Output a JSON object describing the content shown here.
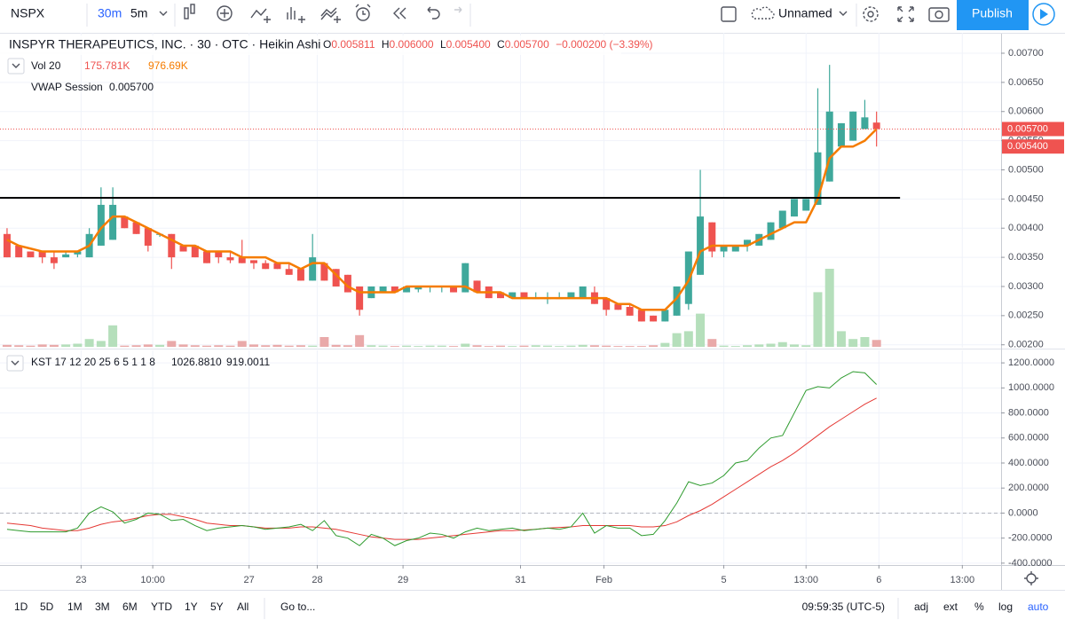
{
  "toolbar": {
    "symbol": "NSPX",
    "intervals": [
      "30m",
      "5m"
    ],
    "layout_name": "Unnamed",
    "publish": "Publish"
  },
  "chart_data": [
    {
      "type": "candlestick",
      "title": "INSPYR THERAPEUTICS, INC. · 30 · OTC · Heikin Ashi",
      "ohlc_legend": [
        {
          "label": "O",
          "value": "0.005811"
        },
        {
          "label": "H",
          "value": "0.006000"
        },
        {
          "label": "L",
          "value": "0.005400"
        },
        {
          "label": "C",
          "value": "0.005700"
        }
      ],
      "change": "−0.000200 (−3.39%)",
      "xlim": [
        -0.6,
        84.6
      ],
      "ylim": [
        0.00195,
        0.00735
      ],
      "yticks": [
        {
          "value": 0.002,
          "label": "0.00200"
        },
        {
          "value": 0.0025,
          "label": "0.00250"
        },
        {
          "value": 0.003,
          "label": "0.00300"
        },
        {
          "value": 0.0035,
          "label": "0.00350"
        },
        {
          "value": 0.004,
          "label": "0.00400"
        },
        {
          "value": 0.0045,
          "label": "0.00450"
        },
        {
          "value": 0.005,
          "label": "0.00500"
        },
        {
          "value": 0.0055,
          "label": "0.00550"
        },
        {
          "value": 0.006,
          "label": "0.00600"
        },
        {
          "value": 0.0065,
          "label": "0.00650"
        },
        {
          "value": 0.007,
          "label": "0.00700"
        }
      ],
      "grid": true,
      "up_color": "#3fa89b",
      "down_color": "#ef5350",
      "open": [
        0.0039,
        0.0037,
        0.0036,
        0.0036,
        0.0035,
        0.0035,
        0.00355,
        0.0035,
        0.0037,
        0.0038,
        0.0042,
        0.0041,
        0.004,
        0.0039,
        0.0039,
        0.0037,
        0.0037,
        0.0036,
        0.0036,
        0.0035,
        0.0035,
        0.00345,
        0.0034,
        0.0034,
        0.0033,
        0.0033,
        0.0031,
        0.0034,
        0.0033,
        0.0032,
        0.003,
        0.0028,
        0.0029,
        0.003,
        0.0029,
        0.00295,
        0.003,
        0.003,
        0.003,
        0.0029,
        0.0031,
        0.003,
        0.0029,
        0.0028,
        0.0029,
        0.0028,
        0.0028,
        0.0028,
        0.0028,
        0.0028,
        0.0029,
        0.0028,
        0.0027,
        0.00265,
        0.0026,
        0.0025,
        0.0024,
        0.0025,
        0.0027,
        0.0032,
        0.0041,
        0.0036,
        0.0036,
        0.0037,
        0.0037,
        0.0038,
        0.004,
        0.0042,
        0.0043,
        0.0044,
        0.0048,
        0.0054,
        0.0055,
        0.0057,
        0.005811
      ],
      "high": [
        0.004,
        0.0037,
        0.0036,
        0.0036,
        0.0036,
        0.0036,
        0.0036,
        0.004,
        0.0047,
        0.0047,
        0.0042,
        0.0041,
        0.004,
        0.0039,
        0.0039,
        0.0037,
        0.0037,
        0.0036,
        0.0036,
        0.0036,
        0.0038,
        0.00345,
        0.00345,
        0.0034,
        0.0034,
        0.0033,
        0.0039,
        0.0034,
        0.0033,
        0.0032,
        0.003,
        0.003,
        0.003,
        0.003,
        0.003,
        0.003,
        0.003,
        0.003,
        0.003,
        0.0034,
        0.0031,
        0.003,
        0.0029,
        0.0029,
        0.0029,
        0.0029,
        0.0029,
        0.0029,
        0.0029,
        0.003,
        0.003,
        0.0028,
        0.0027,
        0.0027,
        0.0026,
        0.0025,
        0.0026,
        0.003,
        0.0036,
        0.005,
        0.0041,
        0.0037,
        0.0037,
        0.0038,
        0.0039,
        0.0041,
        0.0043,
        0.0045,
        0.0045,
        0.0064,
        0.0068,
        0.0058,
        0.006,
        0.0062,
        0.006
      ],
      "low": [
        0.0035,
        0.0035,
        0.0035,
        0.0034,
        0.0033,
        0.0035,
        0.0035,
        0.0035,
        0.0037,
        0.0038,
        0.004,
        0.0039,
        0.0036,
        0.00385,
        0.0033,
        0.0036,
        0.0035,
        0.0034,
        0.0034,
        0.0034,
        0.0034,
        0.0033,
        0.0033,
        0.0033,
        0.0032,
        0.0031,
        0.0031,
        0.0031,
        0.003,
        0.0029,
        0.0025,
        0.0028,
        0.0029,
        0.0029,
        0.0029,
        0.0029,
        0.0029,
        0.0029,
        0.0029,
        0.0029,
        0.0029,
        0.0028,
        0.0028,
        0.0028,
        0.0028,
        0.0028,
        0.0027,
        0.0028,
        0.0028,
        0.0028,
        0.0027,
        0.0025,
        0.0026,
        0.0025,
        0.0024,
        0.0024,
        0.0024,
        0.0025,
        0.0026,
        0.0032,
        0.0035,
        0.0035,
        0.0036,
        0.0036,
        0.0037,
        0.0038,
        0.004,
        0.0042,
        0.0043,
        0.0044,
        0.0048,
        0.0054,
        0.0055,
        0.0057,
        0.0054
      ],
      "close": [
        0.0035,
        0.0035,
        0.0035,
        0.0035,
        0.0034,
        0.00355,
        0.0036,
        0.0039,
        0.0044,
        0.0044,
        0.004,
        0.0039,
        0.0037,
        0.0039,
        0.0035,
        0.0036,
        0.0035,
        0.0034,
        0.0035,
        0.00345,
        0.0034,
        0.0034,
        0.0033,
        0.0033,
        0.0032,
        0.0031,
        0.0035,
        0.0031,
        0.003,
        0.0029,
        0.0026,
        0.003,
        0.003,
        0.0029,
        0.003,
        0.003,
        0.003,
        0.003,
        0.0029,
        0.0034,
        0.0029,
        0.0028,
        0.0028,
        0.0029,
        0.0028,
        0.0028,
        0.0028,
        0.0028,
        0.0029,
        0.003,
        0.0027,
        0.0026,
        0.0026,
        0.0025,
        0.0024,
        0.0024,
        0.0026,
        0.003,
        0.0036,
        0.0042,
        0.0036,
        0.0037,
        0.0037,
        0.0038,
        0.0039,
        0.0041,
        0.0043,
        0.0045,
        0.0045,
        0.0053,
        0.006,
        0.0058,
        0.006,
        0.0059,
        0.0057
      ],
      "volume": {
        "title": "Vol 20",
        "labels": [
          "175.781K",
          "976.69K"
        ],
        "up_color": "#b5dfbb",
        "down_color": "#e9a9a9",
        "values": [
          50000,
          40000,
          30000,
          60000,
          50000,
          60000,
          80000,
          200000,
          150000,
          550000,
          30000,
          40000,
          60000,
          50000,
          150000,
          60000,
          40000,
          30000,
          40000,
          30000,
          150000,
          60000,
          40000,
          50000,
          30000,
          40000,
          30000,
          250000,
          50000,
          40000,
          300000,
          40000,
          30000,
          20000,
          30000,
          20000,
          30000,
          30000,
          20000,
          80000,
          40000,
          20000,
          30000,
          20000,
          30000,
          40000,
          30000,
          20000,
          30000,
          50000,
          40000,
          30000,
          20000,
          20000,
          20000,
          40000,
          100000,
          350000,
          400000,
          850000,
          200000,
          30000,
          20000,
          40000,
          60000,
          80000,
          120000,
          60000,
          40000,
          1400000,
          2000000,
          400000,
          200000,
          250000,
          175781
        ]
      },
      "overlays": [
        {
          "name": "VWAP Session",
          "color": "#f57c00",
          "value_label": "0.005700",
          "values": [
            0.0038,
            0.0037,
            0.00365,
            0.0036,
            0.0036,
            0.0036,
            0.0036,
            0.0037,
            0.004,
            0.0042,
            0.0042,
            0.0041,
            0.004,
            0.0039,
            0.0038,
            0.0037,
            0.0037,
            0.0036,
            0.0036,
            0.0036,
            0.0035,
            0.0035,
            0.0035,
            0.0034,
            0.0034,
            0.0033,
            0.0034,
            0.0034,
            0.0032,
            0.003,
            0.0029,
            0.0029,
            0.0029,
            0.0029,
            0.003,
            0.003,
            0.003,
            0.003,
            0.003,
            0.003,
            0.0029,
            0.0029,
            0.0029,
            0.0028,
            0.0028,
            0.0028,
            0.0028,
            0.0028,
            0.0028,
            0.0028,
            0.0028,
            0.0028,
            0.0027,
            0.0027,
            0.0026,
            0.0026,
            0.0026,
            0.0028,
            0.0031,
            0.0036,
            0.0037,
            0.0037,
            0.0037,
            0.0037,
            0.0038,
            0.0039,
            0.004,
            0.0041,
            0.0041,
            0.0045,
            0.0052,
            0.0054,
            0.0054,
            0.0055,
            0.0057
          ]
        }
      ],
      "horizontal_line": {
        "value": 0.00452,
        "x_end": 76,
        "color": "#000000"
      },
      "price_labels": [
        {
          "value": 0.0057,
          "label": "0.005700"
        },
        {
          "value": 0.0054,
          "label": "0.005400"
        }
      ],
      "price_label_color": "#ef5350"
    },
    {
      "type": "line",
      "title": "KST 17 12 20 25 6 5 1 1 8",
      "xlim": [
        -0.6,
        84.6
      ],
      "xticks": [
        {
          "value": 6.3,
          "label": "23"
        },
        {
          "value": 12.4,
          "label": "10:00"
        },
        {
          "value": 20.6,
          "label": "27"
        },
        {
          "value": 26.4,
          "label": "28"
        },
        {
          "value": 33.7,
          "label": "29"
        },
        {
          "value": 43.7,
          "label": "31"
        },
        {
          "value": 50.8,
          "label": "Feb"
        },
        {
          "value": 61,
          "label": "5"
        },
        {
          "value": 68,
          "label": "13:00"
        },
        {
          "value": 74.2,
          "label": "6"
        },
        {
          "value": 81.3,
          "label": "13:00"
        }
      ],
      "ylim": [
        -415,
        1300
      ],
      "yticks": [
        {
          "value": -400,
          "label": "-400.0000"
        },
        {
          "value": -200,
          "label": "-200.0000"
        },
        {
          "value": 0,
          "label": "0.0000"
        },
        {
          "value": 200,
          "label": "200.0000"
        },
        {
          "value": 400,
          "label": "400.0000"
        },
        {
          "value": 600,
          "label": "600.0000"
        },
        {
          "value": 800,
          "label": "800.0000"
        },
        {
          "value": 1000,
          "label": "1000.0000"
        },
        {
          "value": 1200,
          "label": "1200.0000"
        }
      ],
      "grid": true,
      "zero_line": 0,
      "series": [
        {
          "color": "#2e9b2e",
          "last_value_label": "1026.8810",
          "values": [
            -130,
            -140,
            -150,
            -150,
            -150,
            -150,
            -120,
            0,
            50,
            10,
            -80,
            -50,
            0,
            -10,
            -60,
            -50,
            -100,
            -140,
            -120,
            -110,
            -100,
            -110,
            -130,
            -120,
            -110,
            -90,
            -140,
            -60,
            -180,
            -200,
            -260,
            -170,
            -200,
            -260,
            -220,
            -200,
            -160,
            -170,
            -200,
            -150,
            -120,
            -140,
            -130,
            -120,
            -140,
            -130,
            -120,
            -130,
            -110,
            0,
            -160,
            -100,
            -120,
            -120,
            -180,
            -170,
            -60,
            80,
            250,
            220,
            240,
            300,
            400,
            420,
            520,
            600,
            620,
            800,
            980,
            1010,
            1000,
            1080,
            1130,
            1120,
            1026.881
          ]
        },
        {
          "color": "#e53935",
          "last_value_label": "919.0011",
          "values": [
            -80,
            -90,
            -100,
            -120,
            -130,
            -140,
            -140,
            -120,
            -90,
            -70,
            -60,
            -40,
            -20,
            -10,
            -10,
            -30,
            -50,
            -80,
            -90,
            -100,
            -100,
            -110,
            -120,
            -120,
            -120,
            -110,
            -110,
            -120,
            -130,
            -150,
            -170,
            -190,
            -200,
            -210,
            -210,
            -210,
            -200,
            -190,
            -180,
            -170,
            -160,
            -150,
            -140,
            -140,
            -135,
            -130,
            -120,
            -115,
            -110,
            -100,
            -100,
            -100,
            -100,
            -100,
            -110,
            -110,
            -100,
            -70,
            -20,
            20,
            70,
            130,
            190,
            250,
            310,
            370,
            420,
            480,
            550,
            620,
            690,
            750,
            810,
            870,
            919.0011
          ]
        }
      ]
    }
  ],
  "bottom_bar": {
    "ranges": [
      "1D",
      "5D",
      "1M",
      "3M",
      "6M",
      "YTD",
      "1Y",
      "5Y",
      "All"
    ],
    "goto": "Go to...",
    "clock": "09:59:35 (UTC-5)",
    "options": [
      "adj",
      "ext",
      "%",
      "log",
      "auto"
    ]
  }
}
